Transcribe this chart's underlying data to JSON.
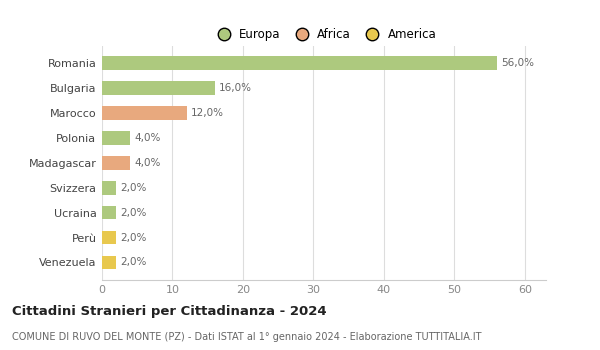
{
  "categories": [
    "Romania",
    "Bulgaria",
    "Marocco",
    "Polonia",
    "Madagascar",
    "Svizzera",
    "Ucraina",
    "Perù",
    "Venezuela"
  ],
  "values": [
    56.0,
    16.0,
    12.0,
    4.0,
    4.0,
    2.0,
    2.0,
    2.0,
    2.0
  ],
  "labels": [
    "56,0%",
    "16,0%",
    "12,0%",
    "4,0%",
    "4,0%",
    "2,0%",
    "2,0%",
    "2,0%",
    "2,0%"
  ],
  "colors": [
    "#adc97e",
    "#adc97e",
    "#e8a97e",
    "#adc97e",
    "#e8a97e",
    "#adc97e",
    "#adc97e",
    "#e8c84e",
    "#e8c84e"
  ],
  "legend": [
    {
      "label": "Europa",
      "color": "#adc97e"
    },
    {
      "label": "Africa",
      "color": "#e8a97e"
    },
    {
      "label": "America",
      "color": "#e8c84e"
    }
  ],
  "xlim": [
    0,
    63
  ],
  "xticks": [
    0,
    10,
    20,
    30,
    40,
    50,
    60
  ],
  "title": "Cittadini Stranieri per Cittadinanza - 2024",
  "subtitle": "COMUNE DI RUVO DEL MONTE (PZ) - Dati ISTAT al 1° gennaio 2024 - Elaborazione TUTTITALIA.IT",
  "background_color": "#ffffff",
  "grid_color": "#dddddd",
  "bar_height": 0.55
}
